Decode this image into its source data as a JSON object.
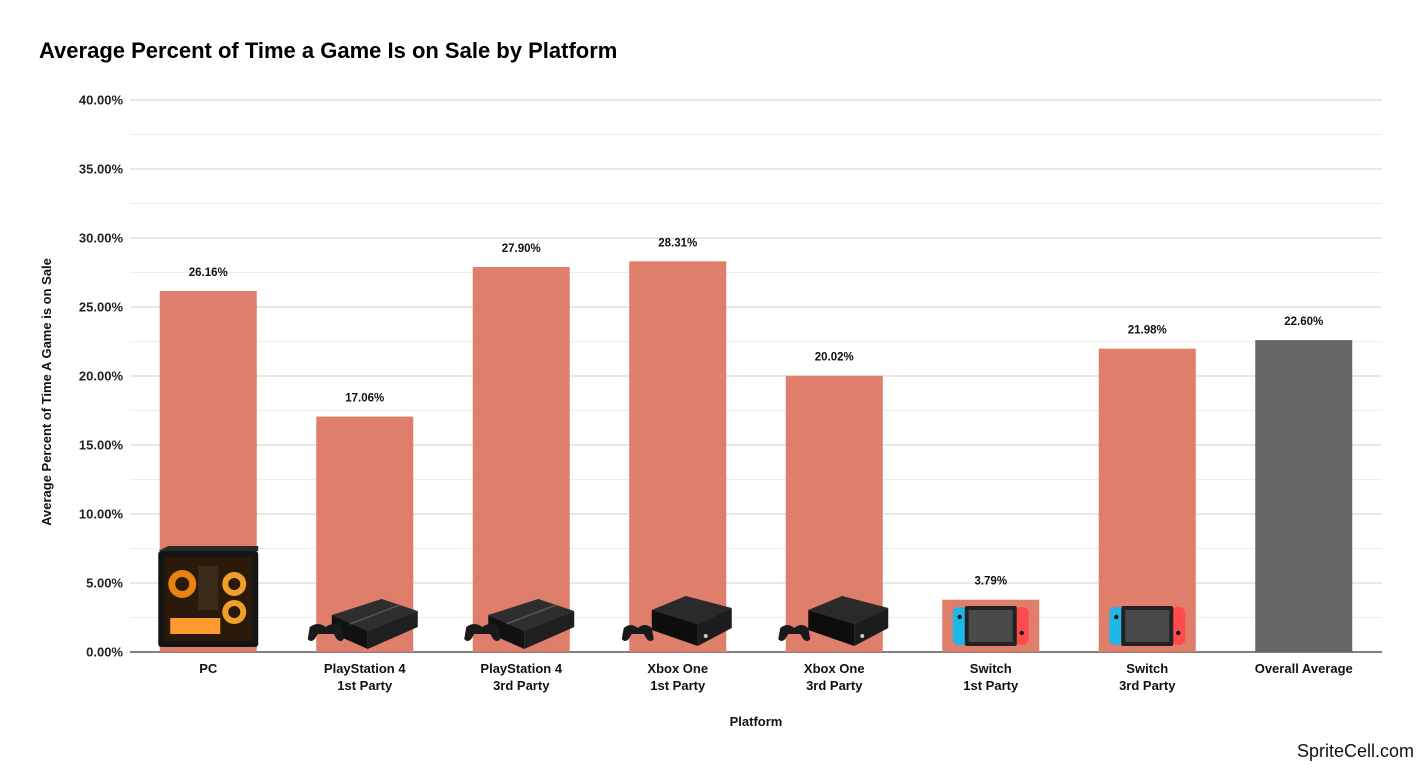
{
  "chart_data": {
    "type": "bar",
    "title": "Average Percent of Time a Game Is on Sale by Platform",
    "xlabel": "Platform",
    "ylabel": "Average Percent of Time A Game is on Sale",
    "ylim": [
      0,
      40
    ],
    "yticks": [
      "0.00%",
      "5.00%",
      "10.00%",
      "15.00%",
      "20.00%",
      "25.00%",
      "30.00%",
      "35.00%",
      "40.00%"
    ],
    "grid": true,
    "categories": [
      [
        "PC"
      ],
      [
        "PlayStation 4",
        "1st Party"
      ],
      [
        "PlayStation 4",
        "3rd Party"
      ],
      [
        "Xbox One",
        "1st Party"
      ],
      [
        "Xbox One",
        "3rd Party"
      ],
      [
        "Switch",
        "1st Party"
      ],
      [
        "Switch",
        "3rd Party"
      ],
      [
        "Overall Average"
      ]
    ],
    "values": [
      26.16,
      17.06,
      27.9,
      28.31,
      20.02,
      3.79,
      21.98,
      22.6
    ],
    "data_labels": [
      "26.16%",
      "17.06%",
      "27.90%",
      "28.31%",
      "20.02%",
      "3.79%",
      "21.98%",
      "22.60%"
    ],
    "bar_colors": [
      "#de7e6b",
      "#de7e6b",
      "#de7e6b",
      "#de7e6b",
      "#de7e6b",
      "#de7e6b",
      "#de7e6b",
      "#666666"
    ],
    "icons": [
      "pc-case-icon",
      "playstation-console-icon",
      "playstation-console-icon",
      "xbox-console-icon",
      "xbox-console-icon",
      "switch-console-icon",
      "switch-console-icon",
      ""
    ]
  },
  "watermark": "SpriteCell.com",
  "colors": {
    "bar": "#de7e6b",
    "average_bar": "#666666",
    "grid": "#d0d0d0",
    "minor_grid": "#ececec",
    "axis": "#333333"
  }
}
